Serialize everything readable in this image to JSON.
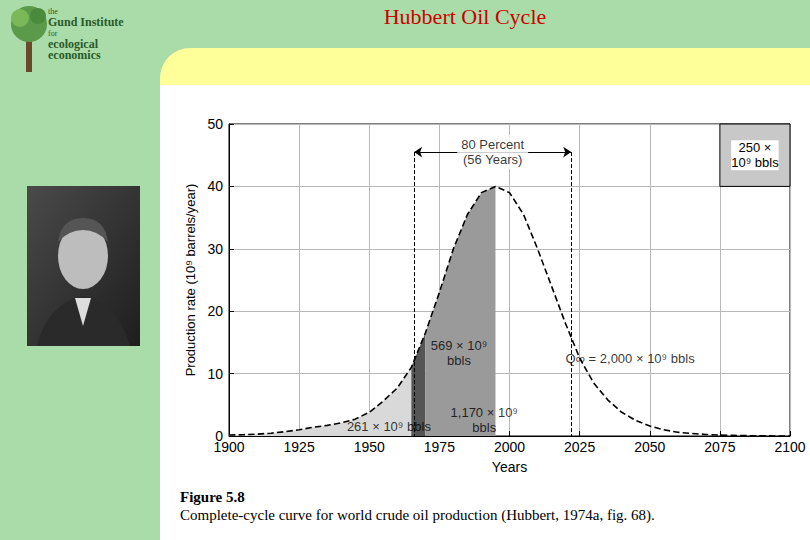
{
  "title": "Hubbert Oil Cycle",
  "logo": [
    "the",
    "Gund Institute",
    "for",
    "ecological",
    "economics"
  ],
  "caption": {
    "label": "Figure 5.8",
    "text": "Complete-cycle curve for world crude oil production (Hubbert, 1974a, fig. 68)."
  },
  "chart_data": {
    "type": "line",
    "x_label": "Years",
    "y_label": "Production rate (10⁹ barrels/year)",
    "x": [
      1900,
      1905,
      1910,
      1915,
      1920,
      1925,
      1930,
      1935,
      1940,
      1945,
      1950,
      1955,
      1960,
      1965,
      1970,
      1975,
      1980,
      1985,
      1990,
      1995,
      2000,
      2005,
      2010,
      2015,
      2020,
      2025,
      2030,
      2035,
      2040,
      2045,
      2050,
      2055,
      2060,
      2065,
      2070,
      2075,
      2080,
      2085,
      2090,
      2095,
      2100
    ],
    "series": [
      {
        "type": "area",
        "color": "#d9d9d9",
        "values": [
          0.15,
          0.2,
          0.3,
          0.45,
          0.7,
          1.0,
          1.4,
          1.7,
          2.1,
          2.7,
          3.8,
          5.6,
          7.7,
          11,
          null,
          null,
          null,
          null,
          null,
          null,
          null,
          null,
          null,
          null,
          null,
          null,
          null,
          null,
          null,
          null,
          null,
          null,
          null,
          null,
          null,
          null,
          null,
          null,
          null,
          null,
          null
        ]
      },
      {
        "type": "area",
        "color": "#555555",
        "values": [
          null,
          null,
          null,
          null,
          null,
          null,
          null,
          null,
          null,
          null,
          null,
          null,
          null,
          11,
          16.5,
          null,
          null,
          null,
          null,
          null,
          null,
          null,
          null,
          null,
          null,
          null,
          null,
          null,
          null,
          null,
          null,
          null,
          null,
          null,
          null,
          null,
          null,
          null,
          null,
          null,
          null
        ]
      },
      {
        "type": "area",
        "color": "#9a9a9a",
        "values": [
          null,
          null,
          null,
          null,
          null,
          null,
          null,
          null,
          null,
          null,
          null,
          null,
          null,
          null,
          16.5,
          23,
          30,
          35.5,
          39,
          40,
          null,
          null,
          null,
          null,
          null,
          null,
          null,
          null,
          null,
          null,
          null,
          null,
          null,
          null,
          null,
          null,
          null,
          null,
          null,
          null,
          null
        ]
      },
      {
        "type": "line",
        "color": "#000000",
        "line_style": "dashed",
        "values": [
          0.15,
          0.2,
          0.3,
          0.45,
          0.7,
          1.0,
          1.4,
          1.7,
          2.1,
          2.7,
          3.8,
          5.6,
          7.7,
          11,
          16.5,
          23,
          30,
          35.5,
          39,
          40,
          39,
          35.5,
          30,
          24,
          18,
          12.5,
          8.5,
          5.8,
          3.8,
          2.5,
          1.6,
          1.0,
          0.6,
          0.4,
          0.25,
          0.15,
          0.1,
          0.05,
          0.03,
          0.01,
          0
        ]
      }
    ],
    "xlim": [
      1900,
      2100
    ],
    "xticks": [
      1900,
      1925,
      1950,
      1975,
      2000,
      2025,
      2050,
      2075,
      2100
    ],
    "ylim": [
      0,
      50
    ],
    "yticks": [
      0,
      10,
      20,
      30,
      40,
      50
    ],
    "grid": true,
    "bracket": {
      "text": "80 Percent\n(56 Years)",
      "start": 1966,
      "end": 2022,
      "y": 45.5
    },
    "box": {
      "text": "250 ×\n10⁹ bbls",
      "x": [
        2075,
        2100
      ],
      "y": [
        40,
        50
      ]
    },
    "annotations": [
      {
        "text": "261 × 10⁹ bbls",
        "x": 1957,
        "y": 1.6
      },
      {
        "text": "569 × 10⁹\nbbls",
        "x": 1982,
        "y": 13.3
      },
      {
        "text": "1,170 × 10⁹\nbbls",
        "x": 1991,
        "y": 2.6
      },
      {
        "text": "Q∞ = 2,000 × 10⁹ bbls",
        "x": 2043,
        "y": 12.5
      }
    ]
  }
}
